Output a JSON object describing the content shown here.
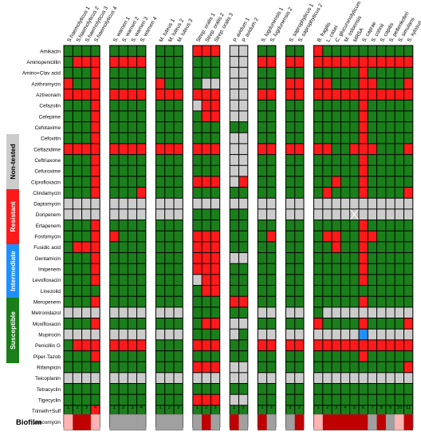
{
  "chart_data": {
    "type": "heatmap",
    "title": "",
    "colors": {
      "S": "#1a7f1a",
      "R": "#ff1a1a",
      "N": "#cccccc",
      "I": "#1e90ff",
      "X": "#cccccc",
      "bio_strong": "#c00000",
      "bio_weak": "#ffb3b3",
      "bio_none": "#a0a0a0"
    },
    "legend": [
      {
        "label": "Non-tested",
        "color": "#cccccc"
      },
      {
        "label": "Resistant",
        "color": "#ff1a1a"
      },
      {
        "label": "Intermediate",
        "color": "#1e90ff"
      },
      {
        "label": "Susceptible",
        "color": "#1a7f1a"
      }
    ],
    "biofilm_label": "Biofilm",
    "antibiotics": [
      "Amikacin",
      "Aminopenicillin",
      "Amino+Clav acid",
      "Azithromycin",
      "Aztreonam",
      "Cefazolin",
      "Cefepime",
      "Cefotaxime",
      "Cefoxitin",
      "Ceftazidime",
      "Ceftriaxone",
      "Cefuroxime",
      "Ciprofloxacin",
      "Clindamycin",
      "Daptomycin",
      "Doripenem",
      "Ertapenem",
      "Fosfomycin",
      "Fusidic acid",
      "Gentamicin",
      "Imipenem",
      "Levofloxacin",
      "Linezolid",
      "Meropenem",
      "Metronidazol",
      "Moxifloxacin",
      "Mupirocin",
      "Penicillin G",
      "Piper-Tazob",
      "Rifampicin",
      "Teicoplanin",
      "Tetracyclin",
      "Tigecyclin",
      "Trimeth+Sulf",
      "Vancomycin"
    ],
    "groups": [
      {
        "strains": [
          "S.haemolyticus 1",
          "S.haemolyticus 2",
          "S.haemolyticus 3",
          "S.haemolyticus 4"
        ],
        "numbers": [
          "1",
          "2",
          "3",
          "4"
        ],
        "biofilm": [
          "W",
          "S",
          "S",
          "W"
        ],
        "matrix": [
          "SSSS",
          "SRRR",
          "SSSR",
          "RSSR",
          "RRRR",
          "SSSR",
          "SSSR",
          "SSSR",
          "SSSR",
          "RRRR",
          "SSSR",
          "SSSR",
          "SSSR",
          "SSSR",
          "NNNN",
          "NNNN",
          "SSSR",
          "SSSR",
          "SRRR",
          "SSSR",
          "SSSR",
          "SSSR",
          "SSSS",
          "SSSR",
          "NNNN",
          "SSSR",
          "NNNN",
          "SRRR",
          "SSSR",
          "SSSS",
          "NNNN",
          "SSSS",
          "SSSS",
          "SSSR",
          "SSSS"
        ]
      },
      {
        "strains": [
          "S. warneri 1",
          "S. warneri 2",
          "S. warneri 3",
          "S. warneri 4"
        ],
        "numbers": [
          "1",
          "2",
          "3",
          "4"
        ],
        "biofilm": [
          "N",
          "N",
          "N",
          "N"
        ],
        "matrix": [
          "SSSS",
          "RRRR",
          "SSSS",
          "SSSS",
          "RRRR",
          "SSSS",
          "SSSS",
          "SSSS",
          "SSSS",
          "RRRR",
          "SSSS",
          "SSSS",
          "SSSS",
          "SSSR",
          "NNNN",
          "NNNN",
          "SSSS",
          "RSSS",
          "SSSS",
          "SSSS",
          "SSSS",
          "SSSS",
          "SSSS",
          "SSSS",
          "NNNN",
          "SSSS",
          "NNNN",
          "RRRR",
          "SSSS",
          "SSSS",
          "NNNN",
          "SSSS",
          "SSSS",
          "SSSS",
          "SSSS"
        ]
      },
      {
        "strains": [
          "M. luteus 1",
          "M. luteus 2",
          "M. luteus 3"
        ],
        "numbers": [
          "1",
          "2",
          "3"
        ],
        "biofilm": [
          "N",
          "N",
          "N"
        ],
        "matrix": [
          "SSS",
          "SSS",
          "SSS",
          "RSS",
          "RRR",
          "SSS",
          "SSS",
          "SSS",
          "SSS",
          "RRR",
          "SSS",
          "SSS",
          "SSS",
          "SSS",
          "NNN",
          "NNN",
          "SSS",
          "SSS",
          "SSS",
          "SSS",
          "SSS",
          "SSS",
          "SSS",
          "SSS",
          "NNN",
          "SSS",
          "NNN",
          "SSS",
          "SSS",
          "SSS",
          "NNN",
          "SSS",
          "SSS",
          "SSS",
          "SSS"
        ]
      },
      {
        "strains": [
          "Strep. oralis 1",
          "Strep. oralis 2",
          "Strep. oralis 3"
        ],
        "numbers": [
          "1",
          "2",
          "3"
        ],
        "biofilm": [
          "N",
          "S",
          "N"
        ],
        "matrix": [
          "RRR",
          "SSS",
          "SSS",
          "SNN",
          "RRR",
          "NRR",
          "SRR",
          "SSS",
          "SSS",
          "RRR",
          "SSS",
          "SSS",
          "RRR",
          "SSS",
          "NNN",
          "SSS",
          "SSS",
          "RRR",
          "RRR",
          "RRR",
          "RRR",
          "NRR",
          "SRR",
          "SSS",
          "SSS",
          "SRR",
          "SSS",
          "RRR",
          "SSS",
          "RRR",
          "NNN",
          "SSS",
          "RRR",
          "SSS",
          "SSS"
        ]
      },
      {
        "strains": [
          "P. avidum 1",
          "P. avidum 2"
        ],
        "numbers": [
          "1",
          "2"
        ],
        "biofilm": [
          "S",
          "N"
        ],
        "matrix": [
          "NN",
          "NN",
          "NN",
          "NN",
          "NN",
          "NN",
          "NN",
          "SS",
          "NN",
          "NN",
          "NN",
          "NN",
          "NR",
          "SS",
          "NN",
          "SS",
          "SS",
          "SS",
          "SS",
          "NN",
          "SS",
          "SS",
          "SS",
          "RR",
          "SS",
          "NN",
          "NS",
          "SS",
          "SS",
          "NN",
          "NN",
          "SS",
          "NN",
          "SS",
          "NN"
        ]
      },
      {
        "strains": [
          "S. lugdunensis 1",
          "S. lugdunensis 2"
        ],
        "numbers": [
          "1",
          "2"
        ],
        "biofilm": [
          "S",
          "N"
        ],
        "matrix": [
          "SS",
          "RR",
          "SS",
          "SS",
          "RR",
          "SS",
          "SS",
          "SS",
          "SS",
          "RR",
          "SS",
          "SS",
          "SS",
          "SS",
          "NN",
          "NN",
          "SS",
          "SR",
          "SS",
          "SS",
          "SS",
          "SS",
          "SS",
          "SS",
          "NN",
          "SS",
          "NN",
          "RR",
          "SS",
          "SS",
          "NN",
          "SS",
          "SS",
          "SS",
          "SS"
        ]
      },
      {
        "strains": [
          "S. saprophyticus 1",
          "S. saprophyticus 2"
        ],
        "numbers": [
          "1",
          "2"
        ],
        "biofilm": [
          "N",
          "S"
        ],
        "matrix": [
          "SS",
          "RR",
          "SS",
          "RR",
          "RR",
          "SS",
          "SS",
          "SS",
          "SS",
          "RR",
          "SS",
          "SS",
          "SS",
          "SS",
          "NN",
          "NN",
          "SS",
          "SS",
          "SS",
          "SS",
          "SS",
          "SS",
          "SS",
          "SS",
          "NN",
          "SS",
          "NN",
          "RR",
          "SS",
          "SS",
          "NN",
          "SS",
          "SS",
          "SS",
          "SS"
        ]
      },
      {
        "strains": [
          "B. fragilis",
          "L. casei",
          "C. glucuronolyticum",
          "M. osloensis",
          "MRSA",
          "S. caprae",
          "S. cohnii",
          "S. capitis",
          "S. pettenkoferi",
          "S. simulans",
          "S. xylosus"
        ],
        "numbers": [
          "1",
          "2",
          "3",
          "4",
          "5",
          "6",
          "7",
          "8",
          "9",
          "10",
          "11"
        ],
        "biofilm": [
          "W",
          "S",
          "S",
          "S",
          "S",
          "S",
          "N",
          "S",
          "N",
          "W",
          "S"
        ],
        "matrix": [
          "RSSSSSSSSSS",
          "RRRRRRRRRRR",
          "SSSSSRSSSSS",
          "RRSSSRRSSSR",
          "RRRRRRRRRRR",
          "SSSSSRSSSSS",
          "SSSSSRSSSSS",
          "SSSSSRSSSSS",
          "SSSSSRSSSSS",
          "RRSSRRRSSSR",
          "SSSSSRSSSSS",
          "SSSSSRSSSSS",
          "SSRSSRSSSSS",
          "SRSSSRSSSSR",
          "NNNNNNNNNNN",
          "NNNNXNNNNNN",
          "SSSSSRSSSSS",
          "SRRSSRRSSSS",
          "SSRSSRSSSSS",
          "SSSSSRSSSSS",
          "SSSSSRSSSSS",
          "SSSSSRSSSSS",
          "SSSSSSSSSSS",
          "SSSSSRSSSSS",
          "SNNNNNNNNNN",
          "RSSSSRSSSSR",
          "NNNNNINNNNN",
          "RRRRRRRRRRR",
          "SSSSSRSSSSS",
          "SSSSSSSSSSR",
          "NNNNNNNNNNN",
          "SSSSSSSSSSS",
          "SSSSSSSSSSS",
          "SSSSSSSSSSS",
          "SSSSSSSSSSS"
        ]
      }
    ]
  }
}
